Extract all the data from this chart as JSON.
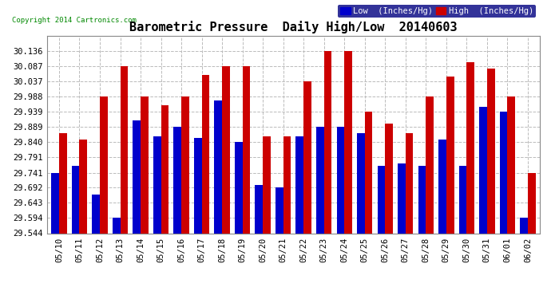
{
  "title": "Barometric Pressure  Daily High/Low  20140603",
  "copyright": "Copyright 2014 Cartronics.com",
  "legend_low": "Low  (Inches/Hg)",
  "legend_high": "High  (Inches/Hg)",
  "dates": [
    "05/10",
    "05/11",
    "05/12",
    "05/13",
    "05/14",
    "05/15",
    "05/16",
    "05/17",
    "05/18",
    "05/19",
    "05/20",
    "05/21",
    "05/22",
    "05/23",
    "05/24",
    "05/25",
    "05/26",
    "05/27",
    "05/28",
    "05/29",
    "05/30",
    "05/31",
    "06/01",
    "06/02"
  ],
  "low": [
    29.741,
    29.762,
    29.671,
    29.594,
    29.91,
    29.86,
    29.89,
    29.854,
    29.975,
    29.84,
    29.7,
    29.693,
    29.858,
    29.89,
    29.89,
    29.87,
    29.762,
    29.771,
    29.762,
    29.849,
    29.762,
    29.956,
    29.939,
    29.594
  ],
  "high": [
    29.87,
    29.85,
    29.988,
    30.087,
    29.988,
    29.96,
    29.988,
    30.06,
    30.087,
    30.087,
    29.86,
    29.86,
    30.037,
    30.136,
    30.136,
    29.939,
    29.9,
    29.87,
    29.988,
    30.055,
    30.1,
    30.08,
    29.988,
    29.741
  ],
  "ylim_min": 29.544,
  "ylim_max": 30.186,
  "yticks": [
    29.544,
    29.594,
    29.643,
    29.692,
    29.741,
    29.791,
    29.84,
    29.889,
    29.939,
    29.988,
    30.037,
    30.087,
    30.136
  ],
  "bar_width": 0.38,
  "low_color": "#0000cc",
  "high_color": "#cc0000",
  "bg_color": "#ffffff",
  "grid_color": "#bbbbbb",
  "title_fontsize": 11,
  "tick_fontsize": 7.5,
  "legend_fontsize": 7.5
}
